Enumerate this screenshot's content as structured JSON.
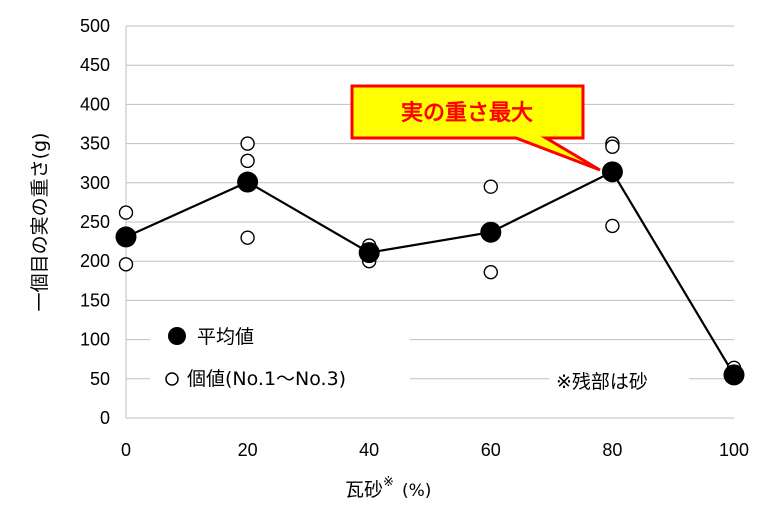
{
  "chart_data": {
    "type": "scatter",
    "xlabel": "瓦砂",
    "xlabel_superscript": "※",
    "xlabel_unit": "(%)",
    "ylabel": "一個目の実の重さ(g)",
    "xlim": [
      0,
      100
    ],
    "ylim": [
      0,
      500
    ],
    "x_ticks": [
      0,
      20,
      40,
      60,
      80,
      100
    ],
    "y_ticks": [
      0,
      50,
      100,
      150,
      200,
      250,
      300,
      350,
      400,
      450,
      500
    ],
    "grid": "horizontal",
    "series": [
      {
        "name": "平均値",
        "marker": "filled-circle",
        "line": true,
        "color": "#000000",
        "x": [
          0,
          20,
          40,
          60,
          80,
          100
        ],
        "y": [
          231,
          301,
          211,
          237,
          314,
          55
        ]
      },
      {
        "name": "個値(No.1〜No.3)",
        "marker": "open-circle",
        "line": false,
        "color": "#000000",
        "points": [
          [
            0,
            262
          ],
          [
            0,
            196
          ],
          [
            0,
            233
          ],
          [
            20,
            350
          ],
          [
            20,
            328
          ],
          [
            20,
            230
          ],
          [
            40,
            220
          ],
          [
            40,
            214
          ],
          [
            40,
            200
          ],
          [
            60,
            295
          ],
          [
            60,
            186
          ],
          [
            60,
            236
          ],
          [
            80,
            350
          ],
          [
            80,
            346
          ],
          [
            80,
            245
          ],
          [
            100,
            64
          ],
          [
            100,
            56
          ],
          [
            100,
            52
          ]
        ]
      }
    ],
    "legend": {
      "placement": "bottom-left",
      "items": [
        "平均値",
        "個値(No.1〜No.3)"
      ]
    },
    "note": "※残部は砂",
    "callout": {
      "text": "実の重さ最大",
      "target": [
        80,
        314
      ],
      "fill": "#ffff00",
      "border": "#ff0000",
      "text_color": "#ff0000"
    }
  }
}
